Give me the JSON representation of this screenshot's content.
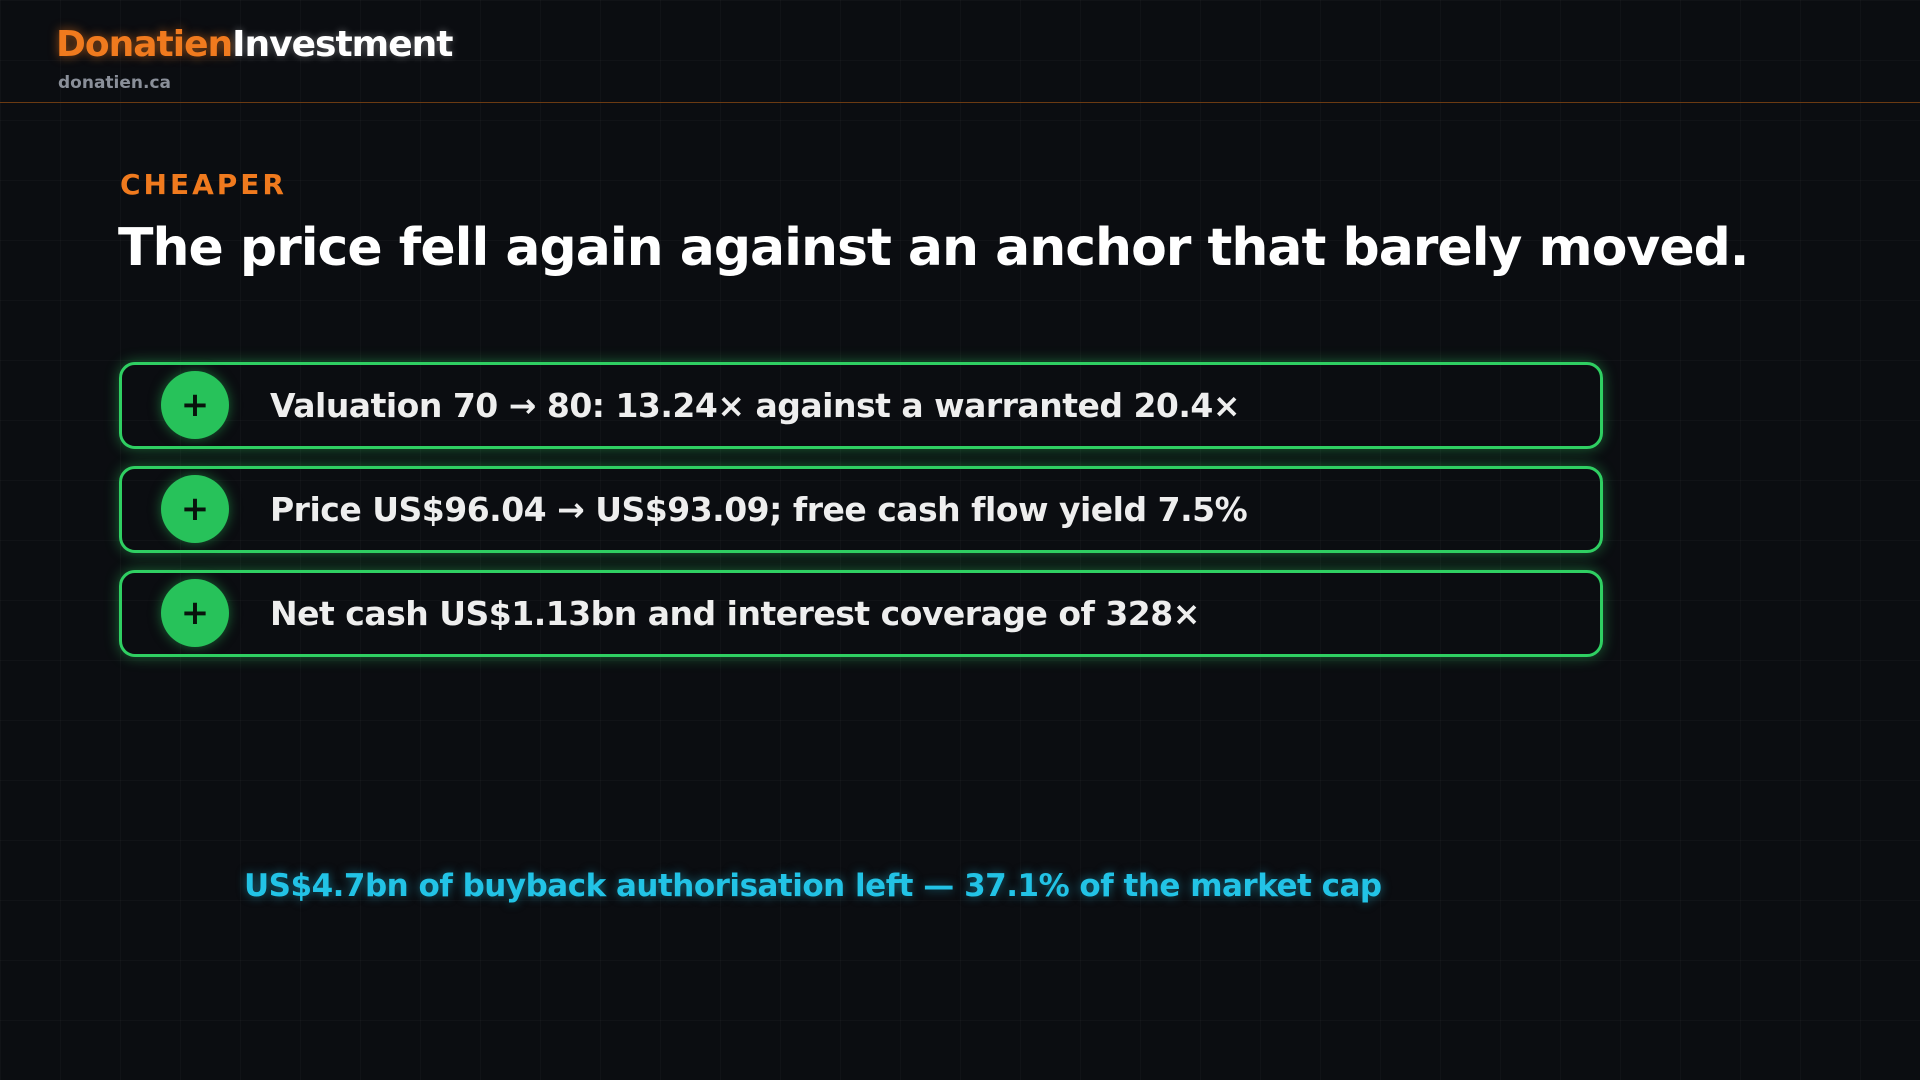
{
  "header": {
    "brand_first": "Donatien",
    "brand_second": "Investment",
    "site": "donatien.ca"
  },
  "eyebrow": "CHEAPER",
  "title": "The price fell again against an anchor that barely moved.",
  "items": [
    {
      "icon": "+",
      "text": "Valuation 70 → 80: 13.24× against a warranted 20.4×"
    },
    {
      "icon": "+",
      "text": "Price US$96.04 → US$93.09; free cash flow yield 7.5%"
    },
    {
      "icon": "+",
      "text": "Net cash US$1.13bn and interest coverage of 328×"
    }
  ],
  "note": "US$4.7bn of buyback authorisation left — 37.1% of the market cap"
}
